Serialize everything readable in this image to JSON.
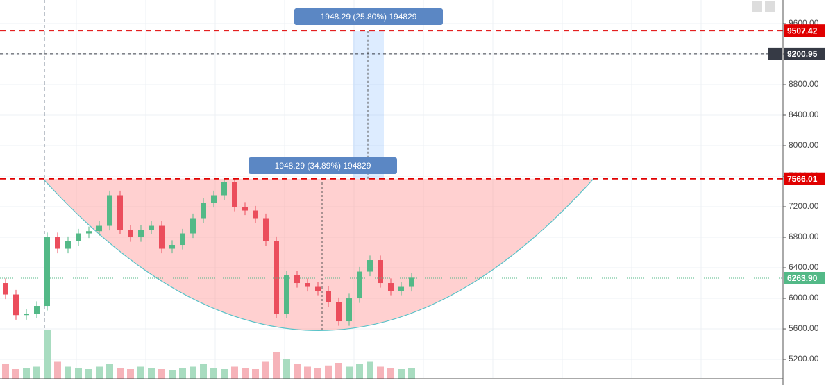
{
  "chart_data": {
    "type": "candlestick",
    "open": [
      6200,
      6050,
      5780,
      5800,
      5900,
      6800,
      6650,
      6750,
      6850,
      6880,
      6950,
      7350,
      6900,
      6800,
      6900,
      6950,
      6650,
      6700,
      6850,
      7050,
      7250,
      7350,
      7520,
      7200,
      7150,
      7050,
      6750,
      5800,
      6300,
      6200,
      6150,
      6100,
      5950,
      5700,
      6000,
      6350,
      6500,
      6200,
      6100,
      6150
    ],
    "high": [
      6260,
      6110,
      5860,
      5960,
      6860,
      6860,
      6810,
      6910,
      6940,
      7010,
      7410,
      7410,
      6960,
      6960,
      7010,
      7010,
      6760,
      6910,
      7110,
      7310,
      7410,
      7560,
      7560,
      7260,
      7210,
      7110,
      6810,
      6360,
      6360,
      6260,
      6210,
      6160,
      6010,
      6060,
      6410,
      6560,
      6560,
      6260,
      6210,
      6330
    ],
    "low": [
      5990,
      5720,
      5720,
      5740,
      5840,
      6590,
      6590,
      6690,
      6790,
      6820,
      6890,
      6840,
      6740,
      6740,
      6840,
      6590,
      6590,
      6640,
      6790,
      6990,
      7190,
      7290,
      7140,
      7090,
      6990,
      6690,
      5740,
      5740,
      6140,
      6090,
      6040,
      5890,
      5640,
      5640,
      5940,
      6290,
      6140,
      6040,
      6040,
      6090
    ],
    "close": [
      6050,
      5780,
      5800,
      5900,
      6800,
      6650,
      6750,
      6850,
      6880,
      6950,
      7350,
      6900,
      6800,
      6900,
      6950,
      6650,
      6700,
      6850,
      7050,
      7250,
      7350,
      7520,
      7200,
      7150,
      7050,
      6750,
      5800,
      6300,
      6200,
      6150,
      6100,
      5950,
      5700,
      6000,
      6350,
      6500,
      6200,
      6100,
      6150,
      6270
    ],
    "volume": [
      12,
      8,
      9,
      10,
      40,
      14,
      10,
      9,
      8,
      10,
      12,
      9,
      8,
      10,
      9,
      8,
      7,
      9,
      10,
      12,
      9,
      8,
      10,
      9,
      8,
      14,
      22,
      16,
      12,
      10,
      9,
      11,
      13,
      10,
      12,
      14,
      10,
      9,
      8,
      9
    ],
    "up_color": "#53b987",
    "down_color": "#eb4d5c",
    "ylim": [
      4864,
      9909
    ],
    "yticks": [
      {
        "value": 5200,
        "label": "5200.00"
      },
      {
        "value": 5600,
        "label": "5600.00"
      },
      {
        "value": 6000,
        "label": "6000.00"
      },
      {
        "value": 6400,
        "label": "6400.00"
      },
      {
        "value": 6800,
        "label": "6800.00"
      },
      {
        "value": 7200,
        "label": "7200.00"
      },
      {
        "value": 7600,
        "label": "7600.00"
      },
      {
        "value": 8000,
        "label": "8000.00"
      },
      {
        "value": 8400,
        "label": "8400.00"
      },
      {
        "value": 8800,
        "label": "8800.00"
      },
      {
        "value": 9200,
        "label": "9200.00"
      },
      {
        "value": 9600,
        "label": "9600.00"
      }
    ],
    "price_lines": [
      {
        "value": 9507.42,
        "label": "9507.42",
        "color": "#e00000"
      },
      {
        "value": 9200.95,
        "label": "9200.95",
        "color": "#363a45"
      },
      {
        "value": 7566.01,
        "label": "7566.01",
        "color": "#e00000"
      },
      {
        "value": 6263.9,
        "label": "6263.90",
        "color": "#53b987"
      }
    ],
    "measures": [
      {
        "label": "1948.29 (25.80%) 194829"
      },
      {
        "label": "1948.29 (34.89%) 194829"
      }
    ]
  }
}
